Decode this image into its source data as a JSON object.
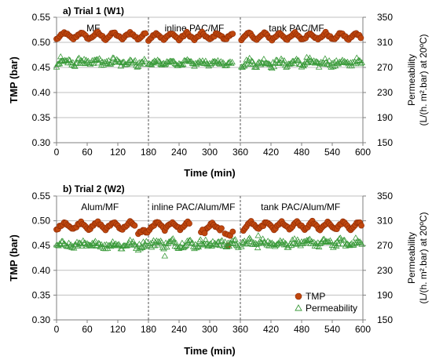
{
  "figure": {
    "colors": {
      "tmp": "#C0470E",
      "tmp_edge": "#8B2A05",
      "perm": "#3A9A3A",
      "axis": "#7F7F7F",
      "divider": "#555555"
    },
    "legend": {
      "tmp_label": "TMP",
      "perm_label": "Permeability"
    }
  },
  "chart_data": [
    {
      "type": "scatter",
      "title": "a) Trial 1 (W1)",
      "xlabel": "Time (min)",
      "ylabel": "TMP (bar)",
      "y2label_line1": "Permeability",
      "y2label_line2": "(L/(h. m².bar) at 20ºC)",
      "xlim": [
        0,
        600
      ],
      "ylim": [
        0.3,
        0.55
      ],
      "y2lim": [
        150,
        350
      ],
      "xticks": [
        "0",
        "60",
        "120",
        "180",
        "240",
        "300",
        "360",
        "420",
        "480",
        "540",
        "600"
      ],
      "yticks": [
        "0.30",
        "0.35",
        "0.40",
        "0.45",
        "0.50",
        "0.55"
      ],
      "y2ticks": [
        "150",
        "190",
        "230",
        "270",
        "310",
        "350"
      ],
      "grid": "horizontal",
      "legend": "none",
      "phase_dividers": [
        180,
        360
      ],
      "phases": [
        {
          "label": "MF",
          "x_center": 72
        },
        {
          "label": "inline PAC/MF",
          "x_center": 270
        },
        {
          "label": "tank PAC/MF",
          "x_center": 470
        }
      ],
      "series": [
        {
          "name": "TMP",
          "axis": "left",
          "marker": "circle",
          "segments": [
            {
              "x_start": 0,
              "x_end": 175,
              "step": 3,
              "base": 0.513,
              "amp": 0.007,
              "period": 32,
              "noise": 0.002
            },
            {
              "x_start": 180,
              "x_end": 345,
              "step": 3,
              "base": 0.512,
              "amp": 0.007,
              "period": 30,
              "noise": 0.002
            },
            {
              "x_start": 362,
              "x_end": 598,
              "step": 3,
              "base": 0.512,
              "amp": 0.007,
              "period": 30,
              "noise": 0.002
            }
          ]
        },
        {
          "name": "Permeability",
          "axis": "right",
          "marker": "triangle",
          "segments": [
            {
              "x_start": 0,
              "x_end": 175,
              "step": 2,
              "base": 278,
              "amp": 4,
              "period": 32,
              "noise": 5
            },
            {
              "x_start": 180,
              "x_end": 345,
              "step": 2,
              "base": 277,
              "amp": 3,
              "period": 30,
              "noise": 3
            },
            {
              "x_start": 362,
              "x_end": 598,
              "step": 2,
              "base": 277,
              "amp": 4,
              "period": 30,
              "noise": 5
            }
          ],
          "outliers": [
            {
              "x": 8,
              "y": 287
            },
            {
              "x": 490,
              "y": 286
            }
          ]
        }
      ]
    },
    {
      "type": "scatter",
      "title": "b) Trial 2 (W2)",
      "xlabel": "Time (min)",
      "ylabel": "TMP (bar)",
      "y2label_line1": "Permeability",
      "y2label_line2": "(L/(h. m².bar) at 20ºC)",
      "xlim": [
        0,
        600
      ],
      "ylim": [
        0.3,
        0.55
      ],
      "y2lim": [
        150,
        350
      ],
      "xticks": [
        "0",
        "60",
        "120",
        "180",
        "240",
        "300",
        "360",
        "420",
        "480",
        "540",
        "600"
      ],
      "yticks": [
        "0.30",
        "0.35",
        "0.40",
        "0.45",
        "0.50",
        "0.55"
      ],
      "y2ticks": [
        "150",
        "190",
        "230",
        "270",
        "310",
        "350"
      ],
      "grid": "horizontal",
      "legend": "bottom-right",
      "phase_dividers": [
        180,
        360
      ],
      "phases": [
        {
          "label": "Alum/MF",
          "x_center": 85
        },
        {
          "label": "inline PAC/Alum/MF",
          "x_center": 268
        },
        {
          "label": "tank PAC/Alum/MF",
          "x_center": 478
        }
      ],
      "series": [
        {
          "name": "TMP",
          "axis": "left",
          "marker": "circle",
          "segments": [
            {
              "x_start": 0,
              "x_end": 155,
              "step": 3,
              "base": 0.49,
              "amp": 0.008,
              "period": 32,
              "noise": 0.002
            },
            {
              "x_start": 160,
              "x_end": 178,
              "step": 3,
              "base": 0.478,
              "amp": 0.003,
              "period": 20,
              "noise": 0.002
            },
            {
              "x_start": 182,
              "x_end": 262,
              "step": 3,
              "base": 0.49,
              "amp": 0.008,
              "period": 30,
              "noise": 0.002
            },
            {
              "x_start": 290,
              "x_end": 325,
              "step": 3,
              "base": 0.488,
              "amp": 0.007,
              "period": 30,
              "noise": 0.002
            },
            {
              "x_start": 366,
              "x_end": 598,
              "step": 3,
              "base": 0.49,
              "amp": 0.008,
              "period": 30,
              "noise": 0.002
            }
          ],
          "outliers": [
            {
              "x": 283,
              "y": 0.477
            },
            {
              "x": 286,
              "y": 0.482
            },
            {
              "x": 290,
              "y": 0.475
            },
            {
              "x": 330,
              "y": 0.474
            },
            {
              "x": 335,
              "y": 0.472
            },
            {
              "x": 340,
              "y": 0.47
            },
            {
              "x": 336,
              "y": 0.45
            },
            {
              "x": 345,
              "y": 0.478
            }
          ]
        },
        {
          "name": "Permeability",
          "axis": "right",
          "marker": "triangle",
          "segments": [
            {
              "x_start": 0,
              "x_end": 178,
              "step": 2,
              "base": 271,
              "amp": 4,
              "period": 32,
              "noise": 5
            },
            {
              "x_start": 182,
              "x_end": 358,
              "step": 2,
              "base": 273,
              "amp": 4,
              "period": 30,
              "noise": 6
            },
            {
              "x_start": 362,
              "x_end": 598,
              "step": 2,
              "base": 274,
              "amp": 4,
              "period": 30,
              "noise": 5
            }
          ],
          "outliers": [
            {
              "x": 212,
              "y": 253
            },
            {
              "x": 395,
              "y": 286
            }
          ]
        }
      ]
    }
  ]
}
